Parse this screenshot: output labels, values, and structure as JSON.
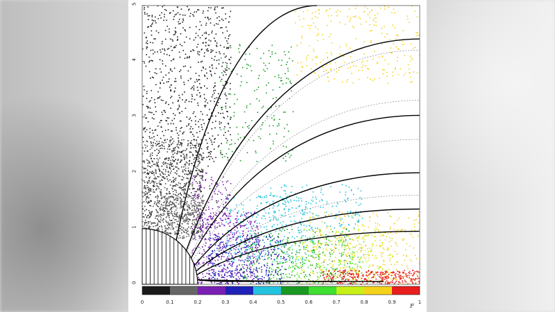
{
  "chart_data": {
    "type": "scatter",
    "xlabel": "F",
    "x_ticks": [
      0,
      0.1,
      0.2,
      0.3,
      0.4,
      0.5,
      0.6,
      0.7,
      0.8,
      0.9,
      1
    ],
    "x_tick_labels": [
      "0",
      "0.1",
      "0.2",
      "0.3",
      "0.4",
      "0.5",
      "0.6",
      "0.7",
      "0.8",
      "0.9",
      "1"
    ],
    "xlim": [
      0,
      1
    ],
    "y_ticks": [
      0,
      1,
      2,
      3,
      4,
      5
    ],
    "y_tick_labels": [
      "0",
      "1",
      "2",
      "3",
      "4",
      "5"
    ],
    "ylim": [
      0,
      5
    ],
    "colorbar": {
      "bins": [
        0,
        0.1,
        0.2,
        0.3,
        0.4,
        0.5,
        0.6,
        0.7,
        0.8,
        0.9,
        1
      ],
      "colors": [
        "#1a1a1a",
        "#666666",
        "#7a1fb3",
        "#1f22b8",
        "#24c4e0",
        "#1a9a22",
        "#3fe030",
        "#c6f018",
        "#f5d21a",
        "#e81d1d"
      ]
    },
    "clusters": [
      {
        "color": "#1a1a1a",
        "count": 1100,
        "x": [
          0.0,
          0.32
        ],
        "y": [
          1.0,
          5.0
        ],
        "tilt": 0.85
      },
      {
        "color": "#444444",
        "count": 700,
        "x": [
          0.0,
          0.22
        ],
        "y": [
          0.9,
          2.6
        ],
        "tilt": 0.0
      },
      {
        "color": "#666666",
        "count": 350,
        "x": [
          0.05,
          0.22
        ],
        "y": [
          0.8,
          1.6
        ],
        "tilt": 0.0
      },
      {
        "color": "#7a1fb3",
        "count": 420,
        "x": [
          0.18,
          0.42
        ],
        "y": [
          0.0,
          1.3
        ],
        "tilt": 0.0
      },
      {
        "color": "#7a1fb3",
        "count": 120,
        "x": [
          0.18,
          0.32
        ],
        "y": [
          1.0,
          2.0
        ],
        "tilt": 0.0
      },
      {
        "color": "#1f22b8",
        "count": 380,
        "x": [
          0.24,
          0.52
        ],
        "y": [
          0.0,
          0.9
        ],
        "tilt": 0.0
      },
      {
        "color": "#24c4e0",
        "count": 300,
        "x": [
          0.3,
          0.62
        ],
        "y": [
          0.4,
          1.6
        ],
        "tilt": 0.0
      },
      {
        "color": "#1a9a22",
        "count": 260,
        "x": [
          0.35,
          0.75
        ],
        "y": [
          0.0,
          1.0
        ],
        "tilt": 0.0
      },
      {
        "color": "#1a9a22",
        "count": 180,
        "x": [
          0.28,
          0.55
        ],
        "y": [
          2.2,
          4.3
        ],
        "tilt": 0.0
      },
      {
        "color": "#3fe030",
        "count": 200,
        "x": [
          0.45,
          0.8
        ],
        "y": [
          0.0,
          0.8
        ],
        "tilt": 0.0
      },
      {
        "color": "#c6f018",
        "count": 220,
        "x": [
          0.55,
          0.9
        ],
        "y": [
          0.0,
          1.0
        ],
        "tilt": 0.0
      },
      {
        "color": "#f5d21a",
        "count": 320,
        "x": [
          0.6,
          1.0
        ],
        "y": [
          0.0,
          1.3
        ],
        "tilt": 0.0
      },
      {
        "color": "#f5d21a",
        "count": 260,
        "x": [
          0.55,
          1.0
        ],
        "y": [
          3.6,
          5.0
        ],
        "tilt": 0.0
      },
      {
        "color": "#e81d1d",
        "count": 300,
        "x": [
          0.65,
          1.0
        ],
        "y": [
          0.0,
          0.25
        ],
        "tilt": 0.0
      },
      {
        "color": "#24c4e0",
        "count": 160,
        "x": [
          0.45,
          0.8
        ],
        "y": [
          1.0,
          1.8
        ],
        "tilt": 0.0
      }
    ],
    "curves": [
      {
        "end": [
          0.63,
          5.0
        ]
      },
      {
        "end": [
          1.0,
          4.4
        ]
      },
      {
        "end": [
          1.0,
          3.03
        ]
      },
      {
        "end": [
          1.0,
          2.0
        ]
      },
      {
        "end": [
          1.0,
          1.35
        ]
      },
      {
        "end": [
          1.0,
          0.95
        ]
      },
      {
        "end": [
          0.87,
          0.05
        ]
      },
      {
        "end": [
          0.7,
          0.05
        ]
      },
      {
        "end": [
          0.58,
          0.05
        ]
      },
      {
        "end": [
          0.48,
          0.05
        ]
      },
      {
        "end": [
          0.4,
          0.05
        ]
      },
      {
        "end": [
          0.33,
          0.05
        ]
      }
    ],
    "dashed_curves": [
      {
        "end": [
          1.0,
          4.2
        ]
      },
      {
        "end": [
          1.0,
          3.3
        ]
      },
      {
        "end": [
          1.0,
          2.6
        ]
      },
      {
        "end": [
          1.0,
          1.6
        ]
      }
    ]
  }
}
